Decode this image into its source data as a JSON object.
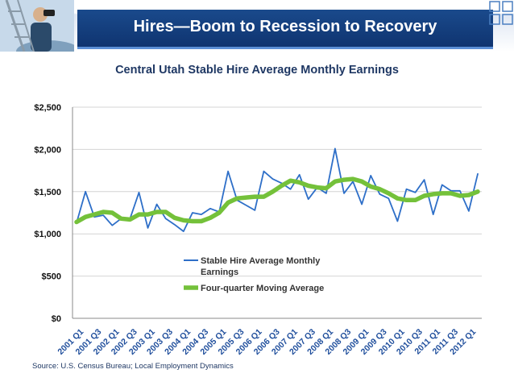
{
  "header": {
    "title": "Hires—Boom to Recession to Recovery",
    "subtitle": "Central Utah Stable Hire Average Monthly Earnings"
  },
  "source": "Source: U.S. Census Bureau; Local Employment Dynamics",
  "colors": {
    "banner": "#143f7e",
    "earnings_line": "#2e6fc8",
    "moving_average": "#74c13a",
    "tick_labels": "#1f4e9c"
  },
  "chart_data": {
    "type": "line",
    "title": "Central Utah Stable Hire Average Monthly Earnings",
    "xlabel": "",
    "ylabel": "",
    "ylim": [
      0,
      2500
    ],
    "y_ticks": [
      0,
      500,
      1000,
      1500,
      2000,
      2500
    ],
    "y_tick_labels": [
      "$0",
      "$500",
      "$1,000",
      "$1,500",
      "$2,000",
      "$2,500"
    ],
    "grid": "horizontal",
    "legend_position": "center",
    "categories": [
      "2001 Q1",
      "2001 Q2",
      "2001 Q3",
      "2001 Q4",
      "2002 Q1",
      "2002 Q2",
      "2002 Q3",
      "2002 Q4",
      "2003 Q1",
      "2003 Q2",
      "2003 Q3",
      "2003 Q4",
      "2004 Q1",
      "2004 Q2",
      "2004 Q3",
      "2004 Q4",
      "2005 Q1",
      "2005 Q2",
      "2005 Q3",
      "2005 Q4",
      "2006 Q1",
      "2006 Q2",
      "2006 Q3",
      "2006 Q4",
      "2007 Q1",
      "2007 Q2",
      "2007 Q3",
      "2007 Q4",
      "2008 Q1",
      "2008 Q2",
      "2008 Q3",
      "2008 Q4",
      "2009 Q1",
      "2009 Q2",
      "2009 Q3",
      "2009 Q4",
      "2010 Q1",
      "2010 Q2",
      "2010 Q3",
      "2010 Q4",
      "2011 Q1",
      "2011 Q2",
      "2011 Q3",
      "2011 Q4",
      "2012 Q1",
      "2012 Q2"
    ],
    "x_tick_labels": [
      "2001 Q1",
      "2001 Q3",
      "2002 Q1",
      "2002 Q3",
      "2003 Q1",
      "2003 Q3",
      "2004 Q1",
      "2004 Q3",
      "2005 Q1",
      "2005 Q3",
      "2006 Q1",
      "2006 Q3",
      "2007 Q1",
      "2007 Q3",
      "2008 Q1",
      "2008 Q3",
      "2009 Q1",
      "2009 Q3",
      "2010 Q1",
      "2010 Q3",
      "2011 Q1",
      "2011 Q3",
      "2012 Q1"
    ],
    "series": [
      {
        "name": "Stable Hire Average Monthly Earnings",
        "values": [
          1130,
          1500,
          1200,
          1220,
          1100,
          1180,
          1180,
          1490,
          1070,
          1350,
          1180,
          1110,
          1030,
          1250,
          1230,
          1300,
          1260,
          1740,
          1400,
          1340,
          1280,
          1740,
          1650,
          1600,
          1530,
          1700,
          1410,
          1550,
          1480,
          2010,
          1480,
          1620,
          1350,
          1690,
          1470,
          1420,
          1150,
          1530,
          1490,
          1640,
          1230,
          1580,
          1510,
          1510,
          1270,
          1710
        ]
      },
      {
        "name": "Four-quarter Moving Average",
        "values": [
          1140,
          1200,
          1230,
          1260,
          1250,
          1180,
          1170,
          1230,
          1230,
          1260,
          1260,
          1190,
          1160,
          1150,
          1150,
          1190,
          1250,
          1370,
          1420,
          1430,
          1440,
          1440,
          1500,
          1570,
          1630,
          1610,
          1570,
          1550,
          1540,
          1620,
          1640,
          1650,
          1620,
          1560,
          1530,
          1480,
          1420,
          1400,
          1400,
          1450,
          1470,
          1480,
          1480,
          1450,
          1460,
          1500
        ]
      }
    ]
  }
}
